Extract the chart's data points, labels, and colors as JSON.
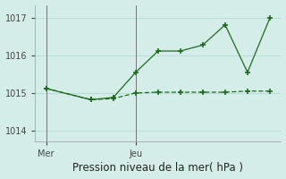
{
  "line1_x": [
    0,
    2,
    3,
    4,
    5,
    6,
    7,
    8,
    9,
    10
  ],
  "line1_y": [
    1015.12,
    1014.82,
    1014.88,
    1015.55,
    1016.12,
    1016.12,
    1016.28,
    1016.82,
    1015.55,
    1017.0
  ],
  "line2_x": [
    0,
    2,
    3,
    4,
    5,
    6,
    7,
    8,
    9,
    10
  ],
  "line2_y": [
    1015.12,
    1014.82,
    1014.85,
    1015.0,
    1015.02,
    1015.02,
    1015.02,
    1015.02,
    1015.05,
    1015.05
  ],
  "line_color": "#1a6b1a",
  "bg_color": "#d5ede9",
  "grid_color": "#b8dcd6",
  "yticks": [
    1014,
    1015,
    1016,
    1017
  ],
  "xtick_pos": [
    0,
    4
  ],
  "xtick_labels": [
    "Mer",
    "Jeu"
  ],
  "xlabel": "Pression niveau de la mer( hPa )",
  "ylim": [
    1013.7,
    1017.35
  ],
  "xlim": [
    -0.5,
    10.5
  ],
  "tick_fontsize": 7,
  "xlabel_fontsize": 8.5
}
